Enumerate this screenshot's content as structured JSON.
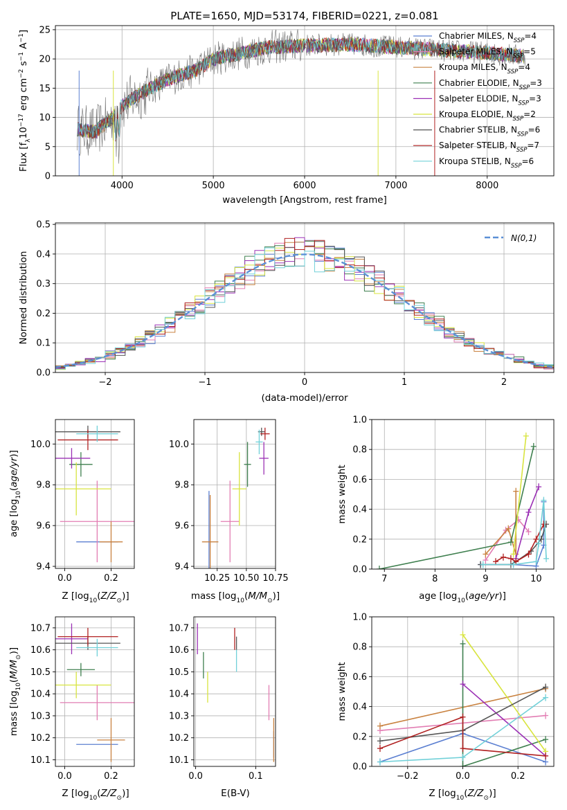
{
  "colors": {
    "Chabrier MILES": "#5b7fd1",
    "Salpeter MILES": "#e27db3",
    "Kroupa MILES": "#c98240",
    "Chabrier ELODIE": "#3e7f4e",
    "Salpeter ELODIE": "#9b30b5",
    "Kroupa ELODIE": "#d8e43e",
    "Chabrier STELIB": "#555555",
    "Salpeter STELIB": "#b02020",
    "Kroupa STELIB": "#70d0d8",
    "normal": "#5b8fd6"
  },
  "legend_spectrum": [
    {
      "name": "Chabrier MILES",
      "nssp": "4"
    },
    {
      "name": "Salpeter MILES",
      "nssp": "5"
    },
    {
      "name": "Kroupa MILES",
      "nssp": "4"
    },
    {
      "name": "Chabrier ELODIE",
      "nssp": "3"
    },
    {
      "name": "Salpeter ELODIE",
      "nssp": "3"
    },
    {
      "name": "Kroupa ELODIE",
      "nssp": "2"
    },
    {
      "name": "Chabrier STELIB",
      "nssp": "6"
    },
    {
      "name": "Salpeter STELIB",
      "nssp": "7"
    },
    {
      "name": "Kroupa STELIB",
      "nssp": "6"
    }
  ],
  "chart_data": [
    {
      "id": "spectrum",
      "type": "line",
      "title": "PLATE=1650, MJD=53174, FIBERID=0221, z=0.081",
      "xlabel": "wavelength [Angstrom, rest frame]",
      "ylabel": "Flux [f_λ10^-17 erg cm^-2 s^-1 A^-1]",
      "xlim": [
        3270,
        8730
      ],
      "ylim": [
        0,
        25.7
      ],
      "xticks": [
        4000,
        5000,
        6000,
        7000,
        8000
      ],
      "yticks": [
        0,
        5,
        10,
        15,
        20,
        25
      ],
      "continuum": [
        [
          3500,
          8
        ],
        [
          3700,
          7.5
        ],
        [
          3900,
          10
        ],
        [
          4000,
          12
        ],
        [
          4200,
          14
        ],
        [
          4500,
          16.5
        ],
        [
          4800,
          18
        ],
        [
          5000,
          20
        ],
        [
          5300,
          21
        ],
        [
          5600,
          22
        ],
        [
          6000,
          22.3
        ],
        [
          6500,
          22.5
        ],
        [
          7000,
          22
        ],
        [
          7500,
          21.5
        ],
        [
          8000,
          21
        ],
        [
          8400,
          20.5
        ]
      ],
      "legend_placement": "right"
    },
    {
      "id": "residual-histogram",
      "type": "histogram",
      "xlabel": "(data-model)/error",
      "ylabel": "Normed distribution",
      "xlim": [
        -2.5,
        2.5
      ],
      "ylim": [
        0,
        0.505
      ],
      "xticks": [
        -2,
        -1,
        0,
        1,
        2
      ],
      "yticks": [
        0.0,
        0.1,
        0.2,
        0.3,
        0.4,
        0.5
      ],
      "bin_width": 0.1,
      "normal_curve_label": "N(0,1)",
      "legend_placement": "top-right"
    },
    {
      "id": "age-vs-Z",
      "type": "scatter",
      "xlabel": "Z [log10(Z/Z⊙)]",
      "ylabel": "age  [log10(age/yr)]",
      "xlim": [
        -0.04,
        0.3
      ],
      "ylim": [
        9.39,
        10.12
      ],
      "xticks": [
        0.0,
        0.2
      ],
      "yticks": [
        9.4,
        9.6,
        9.8,
        10.0
      ],
      "points": [
        {
          "model": "Chabrier MILES",
          "x": 0.14,
          "xerr": 0.09,
          "y": 9.52,
          "yerr": 0.0
        },
        {
          "model": "Salpeter MILES",
          "x": 0.14,
          "xerr": 0.16,
          "y": 9.62,
          "yerr": 0.2
        },
        {
          "model": "Kroupa MILES",
          "x": 0.2,
          "xerr": 0.05,
          "y": 9.52,
          "yerr": 0.1
        },
        {
          "model": "Chabrier ELODIE",
          "x": 0.07,
          "xerr": 0.05,
          "y": 9.9,
          "yerr": 0.06
        },
        {
          "model": "Salpeter ELODIE",
          "x": 0.03,
          "xerr": 0.08,
          "y": 9.93,
          "yerr": 0.05
        },
        {
          "model": "Kroupa ELODIE",
          "x": 0.05,
          "xerr": 0.15,
          "y": 9.78,
          "yerr": 0.13
        },
        {
          "model": "Chabrier STELIB",
          "x": 0.1,
          "xerr": 0.14,
          "y": 10.06,
          "yerr": 0.03
        },
        {
          "model": "Salpeter STELIB",
          "x": 0.1,
          "xerr": 0.13,
          "y": 10.02,
          "yerr": 0.05
        },
        {
          "model": "Kroupa STELIB",
          "x": 0.14,
          "xerr": 0.09,
          "y": 10.05,
          "yerr": 0.04
        }
      ]
    },
    {
      "id": "age-vs-mass",
      "type": "scatter",
      "xlabel": "mass [log10(M/M⊙)]",
      "ylabel": "",
      "xlim": [
        10.05,
        10.75
      ],
      "ylim": [
        9.39,
        10.12
      ],
      "xticks": [
        10.25,
        10.5,
        10.75
      ],
      "yticks": [
        9.4,
        9.6,
        9.8,
        10.0
      ],
      "points": [
        {
          "model": "Chabrier MILES",
          "x": 10.18,
          "xerr": 0.0,
          "y": 9.52,
          "yerr": 0.25
        },
        {
          "model": "Salpeter MILES",
          "x": 10.36,
          "xerr": 0.08,
          "y": 9.62,
          "yerr": 0.2
        },
        {
          "model": "Kroupa MILES",
          "x": 10.19,
          "xerr": 0.07,
          "y": 9.52,
          "yerr": 0.23
        },
        {
          "model": "Chabrier ELODIE",
          "x": 10.51,
          "xerr": 0.03,
          "y": 9.9,
          "yerr": 0.11
        },
        {
          "model": "Salpeter ELODIE",
          "x": 10.65,
          "xerr": 0.04,
          "y": 9.93,
          "yerr": 0.08
        },
        {
          "model": "Kroupa ELODIE",
          "x": 10.44,
          "xerr": 0.06,
          "y": 9.78,
          "yerr": 0.18
        },
        {
          "model": "Chabrier STELIB",
          "x": 10.63,
          "xerr": 0.03,
          "y": 10.06,
          "yerr": 0.02
        },
        {
          "model": "Salpeter STELIB",
          "x": 10.66,
          "xerr": 0.04,
          "y": 10.05,
          "yerr": 0.03
        },
        {
          "model": "Kroupa STELIB",
          "x": 10.61,
          "xerr": 0.03,
          "y": 10.01,
          "yerr": 0.06
        }
      ]
    },
    {
      "id": "weight-vs-age",
      "type": "line",
      "xlabel": "age  [log10(age/yr)]",
      "ylabel": "mass weight",
      "xlim": [
        6.75,
        10.35
      ],
      "ylim": [
        0,
        1.0
      ],
      "xticks": [
        7,
        8,
        9,
        10
      ],
      "yticks": [
        0.0,
        0.2,
        0.4,
        0.6,
        0.8,
        1.0
      ],
      "series": [
        {
          "model": "Chabrier MILES",
          "x": [
            8.9,
            9.55,
            10.0,
            10.15,
            10.15
          ],
          "y": [
            0.03,
            0.03,
            0.02,
            0.16,
            0.45
          ]
        },
        {
          "model": "Salpeter MILES",
          "x": [
            9.0,
            9.4,
            9.65,
            9.85
          ],
          "y": [
            0.06,
            0.26,
            0.33,
            0.25
          ]
        },
        {
          "model": "Kroupa MILES",
          "x": [
            9.0,
            9.45,
            9.6,
            9.6
          ],
          "y": [
            0.1,
            0.27,
            0.1,
            0.52
          ]
        },
        {
          "model": "Chabrier ELODIE",
          "x": [
            6.9,
            9.5,
            9.95
          ],
          "y": [
            0.0,
            0.18,
            0.82
          ]
        },
        {
          "model": "Salpeter ELODIE",
          "x": [
            9.6,
            9.85,
            10.05
          ],
          "y": [
            0.07,
            0.38,
            0.55
          ]
        },
        {
          "model": "Kroupa ELODIE",
          "x": [
            9.55,
            9.8
          ],
          "y": [
            0.1,
            0.89
          ]
        },
        {
          "model": "Chabrier STELIB",
          "x": [
            8.9,
            9.5,
            9.6,
            9.9,
            10.1,
            10.2
          ],
          "y": [
            0.03,
            0.03,
            0.05,
            0.12,
            0.2,
            0.3
          ]
        },
        {
          "model": "Salpeter STELIB",
          "x": [
            9.2,
            9.35,
            9.5,
            9.6,
            9.85,
            10.0,
            10.15
          ],
          "y": [
            0.05,
            0.08,
            0.07,
            0.05,
            0.1,
            0.2,
            0.3
          ]
        },
        {
          "model": "Kroupa STELIB",
          "x": [
            8.95,
            9.55,
            10.0,
            10.05,
            10.15,
            10.2
          ],
          "y": [
            0.03,
            0.03,
            0.05,
            0.17,
            0.46,
            0.07
          ]
        }
      ]
    },
    {
      "id": "mass-vs-Z",
      "type": "scatter",
      "xlabel": "Z [log10(Z/Z⊙)]",
      "ylabel": "mass [log10(M/M⊙)]",
      "xlim": [
        -0.04,
        0.3
      ],
      "ylim": [
        10.07,
        10.75
      ],
      "xticks": [
        0.0,
        0.2
      ],
      "yticks": [
        10.1,
        10.2,
        10.3,
        10.4,
        10.5,
        10.6,
        10.7
      ],
      "points": [
        {
          "model": "Chabrier MILES",
          "x": 0.14,
          "xerr": 0.09,
          "y": 10.17,
          "yerr": 0.0
        },
        {
          "model": "Salpeter MILES",
          "x": 0.14,
          "xerr": 0.16,
          "y": 10.36,
          "yerr": 0.08
        },
        {
          "model": "Kroupa MILES",
          "x": 0.2,
          "xerr": 0.06,
          "y": 10.19,
          "yerr": 0.1
        },
        {
          "model": "Chabrier ELODIE",
          "x": 0.07,
          "xerr": 0.06,
          "y": 10.51,
          "yerr": 0.03
        },
        {
          "model": "Salpeter ELODIE",
          "x": 0.03,
          "xerr": 0.07,
          "y": 10.65,
          "yerr": 0.07
        },
        {
          "model": "Kroupa ELODIE",
          "x": 0.05,
          "xerr": 0.15,
          "y": 10.44,
          "yerr": 0.06
        },
        {
          "model": "Chabrier STELIB",
          "x": 0.1,
          "xerr": 0.14,
          "y": 10.63,
          "yerr": 0.03
        },
        {
          "model": "Salpeter STELIB",
          "x": 0.1,
          "xerr": 0.13,
          "y": 10.66,
          "yerr": 0.04
        },
        {
          "model": "Kroupa STELIB",
          "x": 0.14,
          "xerr": 0.09,
          "y": 10.61,
          "yerr": 0.04
        }
      ]
    },
    {
      "id": "mass-vs-ebv",
      "type": "scatter",
      "xlabel": "E(B-V)",
      "ylabel": "",
      "xlim": [
        -0.003,
        0.133
      ],
      "ylim": [
        10.07,
        10.75
      ],
      "xticks": [
        0.0,
        0.1
      ],
      "yticks": [
        10.1,
        10.2,
        10.3,
        10.4,
        10.5,
        10.6,
        10.7
      ],
      "points": [
        {
          "model": "Chabrier MILES",
          "x": 0.13,
          "xerr": 0.0,
          "y": 10.17,
          "yerr": 0.06
        },
        {
          "model": "Salpeter MILES",
          "x": 0.122,
          "xerr": 0.0,
          "y": 10.36,
          "yerr": 0.08
        },
        {
          "model": "Kroupa MILES",
          "x": 0.13,
          "xerr": 0.0,
          "y": 10.19,
          "yerr": 0.1
        },
        {
          "model": "Chabrier ELODIE",
          "x": 0.013,
          "xerr": 0.0,
          "y": 10.53,
          "yerr": 0.06
        },
        {
          "model": "Salpeter ELODIE",
          "x": 0.003,
          "xerr": 0.0,
          "y": 10.65,
          "yerr": 0.07
        },
        {
          "model": "Kroupa ELODIE",
          "x": 0.02,
          "xerr": 0.0,
          "y": 10.43,
          "yerr": 0.07
        },
        {
          "model": "Chabrier STELIB",
          "x": 0.068,
          "xerr": 0.0,
          "y": 10.63,
          "yerr": 0.03
        },
        {
          "model": "Salpeter STELIB",
          "x": 0.065,
          "xerr": 0.0,
          "y": 10.65,
          "yerr": 0.05
        },
        {
          "model": "Kroupa STELIB",
          "x": 0.068,
          "xerr": 0.0,
          "y": 10.55,
          "yerr": 0.05
        }
      ]
    },
    {
      "id": "weight-vs-Z",
      "type": "line",
      "xlabel": "Z [log10(Z/Z⊙)]",
      "ylabel": "mass weight",
      "xlim": [
        -0.33,
        0.33
      ],
      "ylim": [
        0,
        1.0
      ],
      "xticks": [
        -0.2,
        0.0,
        0.2
      ],
      "yticks": [
        0.0,
        0.2,
        0.4,
        0.6,
        0.8,
        1.0
      ],
      "series": [
        {
          "model": "Chabrier MILES",
          "x": [
            -0.3,
            0.0,
            0.3
          ],
          "y": [
            0.03,
            0.22,
            0.03
          ]
        },
        {
          "model": "Salpeter MILES",
          "x": [
            -0.3,
            0.3
          ],
          "y": [
            0.24,
            0.34
          ]
        },
        {
          "model": "Kroupa MILES",
          "x": [
            -0.3,
            0.3
          ],
          "y": [
            0.27,
            0.52
          ]
        },
        {
          "model": "Chabrier ELODIE",
          "x": [
            0.0,
            0.0,
            0.3
          ],
          "y": [
            0.82,
            0.0,
            0.18
          ]
        },
        {
          "model": "Salpeter ELODIE",
          "x": [
            0.0,
            0.3
          ],
          "y": [
            0.55,
            0.07
          ]
        },
        {
          "model": "Kroupa ELODIE",
          "x": [
            0.0,
            0.3
          ],
          "y": [
            0.88,
            0.1
          ]
        },
        {
          "model": "Chabrier STELIB",
          "x": [
            -0.3,
            0.0,
            0.3
          ],
          "y": [
            0.17,
            0.24,
            0.53
          ]
        },
        {
          "model": "Salpeter STELIB",
          "x": [
            -0.3,
            0.0,
            0.0,
            0.3
          ],
          "y": [
            0.12,
            0.33,
            0.12,
            0.07
          ]
        },
        {
          "model": "Kroupa STELIB",
          "x": [
            -0.3,
            0.0,
            0.3
          ],
          "y": [
            0.03,
            0.06,
            0.46
          ]
        }
      ]
    }
  ]
}
